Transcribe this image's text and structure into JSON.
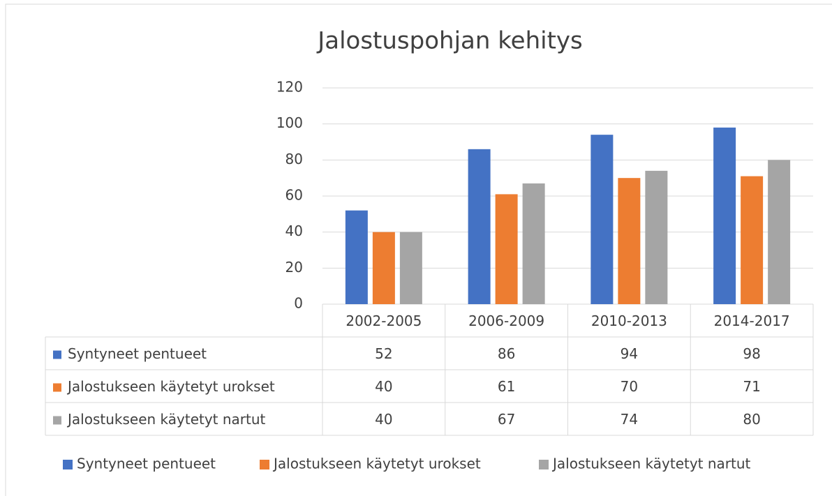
{
  "chart_data": {
    "type": "bar",
    "title": "Jalostuspohjan kehitys",
    "categories": [
      "2002-2005",
      "2006-2009",
      "2010-2013",
      "2014-2017"
    ],
    "series": [
      {
        "name": "Syntyneet pentueet",
        "color": "#4472c4",
        "values": [
          52,
          86,
          94,
          98
        ]
      },
      {
        "name": "Jalostukseen käytetyt urokset",
        "color": "#ed7d31",
        "values": [
          40,
          61,
          70,
          71
        ]
      },
      {
        "name": "Jalostukseen käytetyt nartut",
        "color": "#a5a5a5",
        "values": [
          40,
          67,
          74,
          80
        ]
      }
    ],
    "ylim": [
      0,
      120
    ],
    "yticks": [
      0,
      20,
      40,
      60,
      80,
      100,
      120
    ],
    "grid": true,
    "data_table": true,
    "legend": "bottom"
  }
}
